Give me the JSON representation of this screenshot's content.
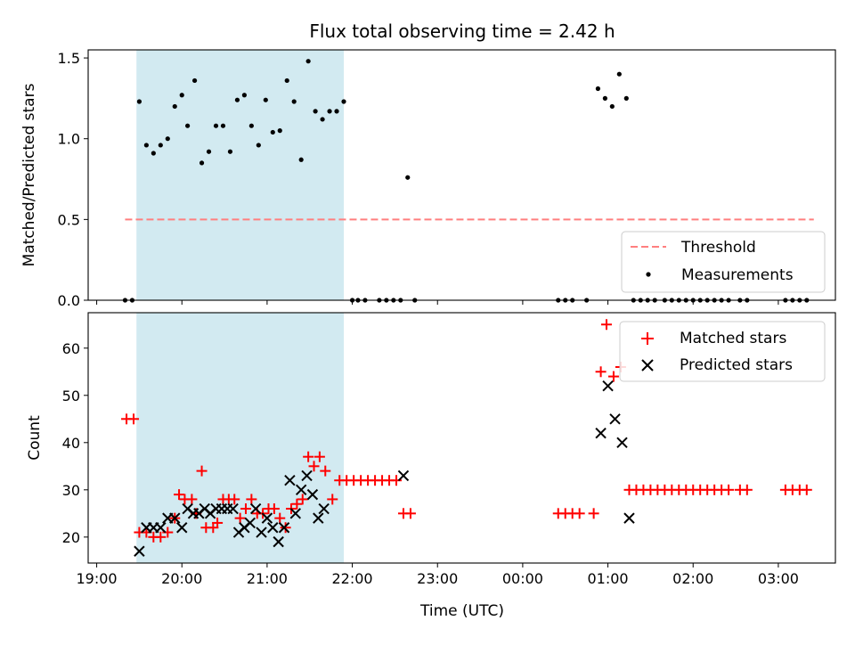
{
  "chart_data": {
    "title": "Flux total observing time = 2.42 h",
    "x_tick_labels": [
      "19:00",
      "20:00",
      "21:00",
      "22:00",
      "23:00",
      "00:00",
      "01:00",
      "02:00",
      "03:00"
    ],
    "xlabel": "Time (UTC)",
    "highlight_span": {
      "start": "19:28",
      "end": "21:54",
      "color": "#add8e6"
    },
    "panels": [
      {
        "type": "scatter",
        "ylabel": "Matched/Predicted stars",
        "ylim": [
          0.0,
          1.55
        ],
        "y_ticks": [
          "0.0",
          "0.5",
          "1.0",
          "1.5"
        ],
        "x_tick_labels_shown": false,
        "threshold": {
          "label": "Threshold",
          "value": 0.5,
          "x_start": "19:20",
          "x_end": "03:25",
          "color": "#ff7f7f"
        },
        "legend": {
          "position": "lower right",
          "entries": [
            "Threshold",
            "Measurements"
          ]
        },
        "series": [
          {
            "name": "Measurements",
            "color": "#000000",
            "marker": "dot",
            "points": [
              [
                "19:20",
                0
              ],
              [
                "19:25",
                0
              ],
              [
                "19:30",
                1.23
              ],
              [
                "19:35",
                0.96
              ],
              [
                "19:40",
                0.91
              ],
              [
                "19:45",
                0.96
              ],
              [
                "19:50",
                1.0
              ],
              [
                "19:55",
                1.2
              ],
              [
                "20:00",
                1.27
              ],
              [
                "20:04",
                1.08
              ],
              [
                "20:09",
                1.36
              ],
              [
                "20:14",
                0.85
              ],
              [
                "20:19",
                0.92
              ],
              [
                "20:24",
                1.08
              ],
              [
                "20:29",
                1.08
              ],
              [
                "20:34",
                0.92
              ],
              [
                "20:39",
                1.24
              ],
              [
                "20:44",
                1.27
              ],
              [
                "20:49",
                1.08
              ],
              [
                "20:54",
                0.96
              ],
              [
                "20:59",
                1.24
              ],
              [
                "21:04",
                1.04
              ],
              [
                "21:09",
                1.05
              ],
              [
                "21:14",
                1.36
              ],
              [
                "21:19",
                1.23
              ],
              [
                "21:24",
                0.87
              ],
              [
                "21:29",
                1.48
              ],
              [
                "21:34",
                1.17
              ],
              [
                "21:39",
                1.12
              ],
              [
                "21:44",
                1.17
              ],
              [
                "21:49",
                1.17
              ],
              [
                "21:54",
                1.23
              ],
              [
                "22:00",
                0
              ],
              [
                "22:04",
                0
              ],
              [
                "22:09",
                0
              ],
              [
                "22:19",
                0
              ],
              [
                "22:24",
                0
              ],
              [
                "22:29",
                0
              ],
              [
                "22:34",
                0
              ],
              [
                "22:39",
                0.76
              ],
              [
                "22:44",
                0
              ],
              [
                "00:25",
                0
              ],
              [
                "00:30",
                0
              ],
              [
                "00:35",
                0
              ],
              [
                "00:45",
                0
              ],
              [
                "00:53",
                1.31
              ],
              [
                "00:58",
                1.25
              ],
              [
                "01:03",
                1.2
              ],
              [
                "01:08",
                1.4
              ],
              [
                "01:13",
                1.25
              ],
              [
                "01:18",
                0
              ],
              [
                "01:23",
                0
              ],
              [
                "01:28",
                0
              ],
              [
                "01:33",
                0
              ],
              [
                "01:40",
                0
              ],
              [
                "01:45",
                0
              ],
              [
                "01:50",
                0
              ],
              [
                "01:55",
                0
              ],
              [
                "02:00",
                0
              ],
              [
                "02:05",
                0
              ],
              [
                "02:10",
                0
              ],
              [
                "02:15",
                0
              ],
              [
                "02:20",
                0
              ],
              [
                "02:25",
                0
              ],
              [
                "02:33",
                0
              ],
              [
                "02:38",
                0
              ],
              [
                "03:05",
                0
              ],
              [
                "03:10",
                0
              ],
              [
                "03:15",
                0
              ],
              [
                "03:20",
                0
              ]
            ]
          }
        ]
      },
      {
        "type": "scatter",
        "ylabel": "Count",
        "ylim": [
          14.5,
          67.5
        ],
        "y_ticks": [
          "20",
          "30",
          "40",
          "50",
          "60"
        ],
        "legend": {
          "position": "upper right",
          "entries": [
            "Matched stars",
            "Predicted stars"
          ]
        },
        "series": [
          {
            "name": "Matched stars",
            "color": "#ff0000",
            "marker": "plus",
            "points": [
              [
                "19:21",
                45
              ],
              [
                "19:26",
                45
              ],
              [
                "19:30",
                21
              ],
              [
                "19:35",
                21
              ],
              [
                "19:40",
                20
              ],
              [
                "19:45",
                20
              ],
              [
                "19:50",
                21
              ],
              [
                "19:55",
                24
              ],
              [
                "19:58",
                29
              ],
              [
                "20:02",
                28
              ],
              [
                "20:07",
                28
              ],
              [
                "20:10",
                25
              ],
              [
                "20:14",
                34
              ],
              [
                "20:17",
                22
              ],
              [
                "20:22",
                22
              ],
              [
                "20:25",
                23
              ],
              [
                "20:29",
                28
              ],
              [
                "20:33",
                28
              ],
              [
                "20:37",
                28
              ],
              [
                "20:41",
                24
              ],
              [
                "20:45",
                26
              ],
              [
                "20:49",
                28
              ],
              [
                "20:53",
                25
              ],
              [
                "20:57",
                25
              ],
              [
                "21:01",
                26
              ],
              [
                "21:05",
                26
              ],
              [
                "21:09",
                24
              ],
              [
                "21:13",
                22
              ],
              [
                "21:17",
                26
              ],
              [
                "21:21",
                27
              ],
              [
                "21:25",
                28
              ],
              [
                "21:29",
                37
              ],
              [
                "21:33",
                35
              ],
              [
                "21:37",
                37
              ],
              [
                "21:41",
                34
              ],
              [
                "21:46",
                28
              ],
              [
                "21:51",
                32
              ],
              [
                "21:56",
                32
              ],
              [
                "22:01",
                32
              ],
              [
                "22:06",
                32
              ],
              [
                "22:11",
                32
              ],
              [
                "22:16",
                32
              ],
              [
                "22:21",
                32
              ],
              [
                "22:26",
                32
              ],
              [
                "22:31",
                32
              ],
              [
                "22:36",
                25
              ],
              [
                "22:41",
                25
              ],
              [
                "00:25",
                25
              ],
              [
                "00:30",
                25
              ],
              [
                "00:35",
                25
              ],
              [
                "00:40",
                25
              ],
              [
                "00:50",
                25
              ],
              [
                "00:55",
                55
              ],
              [
                "00:59",
                65
              ],
              [
                "01:04",
                54
              ],
              [
                "01:09",
                56
              ],
              [
                "01:15",
                30
              ],
              [
                "01:20",
                30
              ],
              [
                "01:25",
                30
              ],
              [
                "01:30",
                30
              ],
              [
                "01:35",
                30
              ],
              [
                "01:40",
                30
              ],
              [
                "01:45",
                30
              ],
              [
                "01:50",
                30
              ],
              [
                "01:55",
                30
              ],
              [
                "02:00",
                30
              ],
              [
                "02:05",
                30
              ],
              [
                "02:10",
                30
              ],
              [
                "02:15",
                30
              ],
              [
                "02:20",
                30
              ],
              [
                "02:25",
                30
              ],
              [
                "02:33",
                30
              ],
              [
                "02:38",
                30
              ],
              [
                "03:05",
                30
              ],
              [
                "03:10",
                30
              ],
              [
                "03:15",
                30
              ],
              [
                "03:20",
                30
              ]
            ]
          },
          {
            "name": "Predicted stars",
            "color": "#000000",
            "marker": "x",
            "points": [
              [
                "19:30",
                17
              ],
              [
                "19:35",
                22
              ],
              [
                "19:40",
                22
              ],
              [
                "19:45",
                22
              ],
              [
                "19:50",
                24
              ],
              [
                "19:55",
                24
              ],
              [
                "20:00",
                22
              ],
              [
                "20:04",
                26
              ],
              [
                "20:08",
                25
              ],
              [
                "20:12",
                25
              ],
              [
                "20:16",
                26
              ],
              [
                "20:20",
                25
              ],
              [
                "20:24",
                26
              ],
              [
                "20:28",
                26
              ],
              [
                "20:32",
                26
              ],
              [
                "20:36",
                26
              ],
              [
                "20:40",
                21
              ],
              [
                "20:44",
                22
              ],
              [
                "20:48",
                23
              ],
              [
                "20:52",
                26
              ],
              [
                "20:56",
                21
              ],
              [
                "21:00",
                24
              ],
              [
                "21:04",
                22
              ],
              [
                "21:08",
                19
              ],
              [
                "21:12",
                22
              ],
              [
                "21:16",
                32
              ],
              [
                "21:20",
                25
              ],
              [
                "21:24",
                30
              ],
              [
                "21:28",
                33
              ],
              [
                "21:32",
                29
              ],
              [
                "21:36",
                24
              ],
              [
                "21:40",
                26
              ],
              [
                "22:36",
                33
              ],
              [
                "00:55",
                42
              ],
              [
                "01:00",
                52
              ],
              [
                "01:05",
                45
              ],
              [
                "01:10",
                40
              ],
              [
                "01:15",
                24
              ]
            ]
          }
        ]
      }
    ]
  }
}
